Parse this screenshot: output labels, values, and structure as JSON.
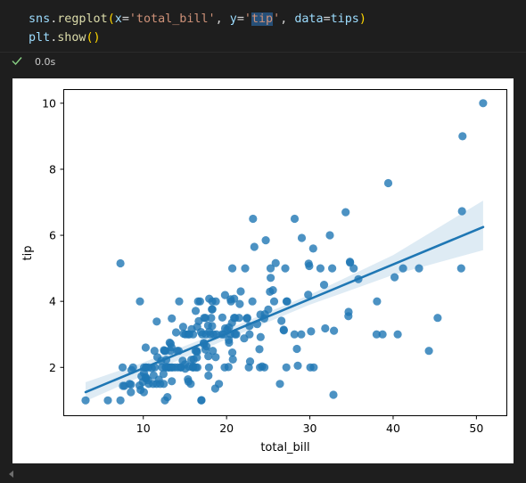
{
  "code": {
    "line1": {
      "module": "sns",
      "dot": ".",
      "func": "regplot",
      "open": "(",
      "kw_x": "x",
      "eq": "=",
      "x_value": "'total_bill'",
      "sep": ", ",
      "kw_y": "y",
      "y_quote_open": "'",
      "y_value": "tip",
      "y_quote_close": "'",
      "kw_data": "data",
      "data_value": "tips",
      "close": ")"
    },
    "line2": {
      "module": "plt",
      "dot": ".",
      "func": "show",
      "parens": "()"
    }
  },
  "execution": {
    "status_icon": "checkmark-icon",
    "status_color": "#89d185",
    "time": "0.0s"
  },
  "chart_data": {
    "type": "scatter",
    "title": "",
    "xlabel": "total_bill",
    "ylabel": "tip",
    "xlim": [
      0.5,
      53.6
    ],
    "ylim": [
      0.55,
      10.4
    ],
    "xticks": [
      10,
      20,
      30,
      40,
      50
    ],
    "yticks": [
      2,
      4,
      6,
      8,
      10
    ],
    "grid": false,
    "legend": "none",
    "point_color": "#1f77b4",
    "regression": {
      "line": [
        [
          3.07,
          1.25
        ],
        [
          50.81,
          6.25
        ]
      ],
      "ci_band": {
        "x": [
          3.07,
          10,
          20,
          30,
          40,
          50.81
        ],
        "lower": [
          0.98,
          1.75,
          2.85,
          3.9,
          4.8,
          5.55
        ],
        "upper": [
          1.55,
          2.15,
          3.15,
          4.2,
          5.4,
          7.05
        ]
      }
    },
    "points": [
      [
        3.07,
        1.0
      ],
      [
        5.75,
        1.0
      ],
      [
        7.25,
        1.0
      ],
      [
        7.25,
        5.15
      ],
      [
        7.51,
        2.0
      ],
      [
        7.56,
        1.44
      ],
      [
        7.74,
        1.44
      ],
      [
        8.35,
        1.5
      ],
      [
        8.51,
        1.25
      ],
      [
        8.52,
        1.48
      ],
      [
        8.58,
        1.92
      ],
      [
        8.77,
        2.0
      ],
      [
        9.55,
        1.45
      ],
      [
        9.6,
        4.0
      ],
      [
        9.68,
        1.32
      ],
      [
        9.78,
        1.73
      ],
      [
        9.94,
        1.56
      ],
      [
        10.07,
        1.25
      ],
      [
        10.07,
        1.83
      ],
      [
        10.09,
        2.0
      ],
      [
        10.27,
        1.71
      ],
      [
        10.29,
        2.6
      ],
      [
        10.33,
        1.67
      ],
      [
        10.33,
        2.0
      ],
      [
        10.34,
        1.66
      ],
      [
        10.34,
        2.0
      ],
      [
        10.59,
        1.61
      ],
      [
        10.63,
        2.0
      ],
      [
        10.65,
        1.5
      ],
      [
        11.02,
        1.98
      ],
      [
        11.17,
        1.5
      ],
      [
        11.24,
        1.76
      ],
      [
        11.35,
        2.5
      ],
      [
        11.38,
        2.0
      ],
      [
        11.59,
        1.5
      ],
      [
        11.61,
        3.39
      ],
      [
        11.69,
        2.31
      ],
      [
        11.87,
        1.63
      ],
      [
        12.03,
        1.5
      ],
      [
        12.16,
        2.2
      ],
      [
        12.26,
        2.0
      ],
      [
        12.43,
        1.8
      ],
      [
        12.46,
        1.5
      ],
      [
        12.48,
        2.52
      ],
      [
        12.54,
        2.5
      ],
      [
        12.6,
        1.0
      ],
      [
        12.66,
        2.5
      ],
      [
        12.69,
        2.0
      ],
      [
        12.74,
        2.01
      ],
      [
        12.76,
        2.23
      ],
      [
        12.9,
        1.1
      ],
      [
        13.0,
        2.0
      ],
      [
        13.03,
        2.0
      ],
      [
        13.13,
        2.0
      ],
      [
        13.16,
        2.75
      ],
      [
        13.27,
        2.5
      ],
      [
        13.28,
        2.72
      ],
      [
        13.37,
        2.0
      ],
      [
        13.39,
        2.61
      ],
      [
        13.42,
        3.48
      ],
      [
        13.42,
        1.58
      ],
      [
        13.51,
        2.0
      ],
      [
        13.81,
        2.0
      ],
      [
        13.94,
        3.06
      ],
      [
        14.07,
        2.5
      ],
      [
        14.15,
        2.0
      ],
      [
        14.26,
        2.5
      ],
      [
        14.31,
        4.0
      ],
      [
        14.48,
        2.0
      ],
      [
        14.52,
        2.0
      ],
      [
        14.73,
        2.2
      ],
      [
        14.78,
        3.23
      ],
      [
        14.83,
        3.02
      ],
      [
        15.01,
        2.09
      ],
      [
        15.04,
        1.96
      ],
      [
        15.06,
        3.0
      ],
      [
        15.36,
        1.64
      ],
      [
        15.38,
        3.0
      ],
      [
        15.42,
        1.57
      ],
      [
        15.48,
        2.02
      ],
      [
        15.53,
        3.0
      ],
      [
        15.69,
        1.5
      ],
      [
        15.77,
        2.23
      ],
      [
        15.81,
        3.16
      ],
      [
        15.95,
        2.0
      ],
      [
        15.98,
        2.03
      ],
      [
        15.98,
        3.0
      ],
      [
        16.0,
        2.0
      ],
      [
        16.04,
        2.24
      ],
      [
        16.27,
        2.5
      ],
      [
        16.29,
        3.71
      ],
      [
        16.31,
        2.0
      ],
      [
        16.4,
        2.5
      ],
      [
        16.43,
        2.3
      ],
      [
        16.45,
        2.47
      ],
      [
        16.47,
        3.23
      ],
      [
        16.49,
        2.0
      ],
      [
        16.58,
        4.0
      ],
      [
        16.66,
        3.4
      ],
      [
        16.82,
        4.0
      ],
      [
        16.93,
        3.07
      ],
      [
        16.97,
        1.0
      ],
      [
        16.99,
        1.01
      ],
      [
        17.07,
        3.0
      ],
      [
        17.26,
        2.74
      ],
      [
        17.29,
        2.71
      ],
      [
        17.31,
        3.5
      ],
      [
        17.46,
        2.54
      ],
      [
        17.47,
        3.5
      ],
      [
        17.51,
        3.0
      ],
      [
        17.59,
        2.64
      ],
      [
        17.78,
        3.27
      ],
      [
        17.81,
        2.34
      ],
      [
        17.82,
        1.75
      ],
      [
        17.89,
        2.0
      ],
      [
        17.92,
        4.08
      ],
      [
        17.92,
        3.08
      ],
      [
        18.04,
        3.0
      ],
      [
        18.15,
        3.5
      ],
      [
        18.24,
        3.76
      ],
      [
        18.26,
        3.25
      ],
      [
        18.28,
        4.0
      ],
      [
        18.29,
        3.76
      ],
      [
        18.35,
        2.5
      ],
      [
        18.43,
        3.0
      ],
      [
        18.64,
        1.36
      ],
      [
        18.69,
        2.31
      ],
      [
        18.71,
        4.0
      ],
      [
        18.78,
        3.0
      ],
      [
        19.08,
        1.5
      ],
      [
        19.44,
        3.0
      ],
      [
        19.49,
        3.51
      ],
      [
        19.65,
        3.0
      ],
      [
        19.77,
        2.0
      ],
      [
        19.81,
        4.19
      ],
      [
        19.82,
        3.18
      ],
      [
        20.08,
        3.15
      ],
      [
        20.23,
        2.01
      ],
      [
        20.27,
        2.83
      ],
      [
        20.29,
        2.75
      ],
      [
        20.29,
        3.21
      ],
      [
        20.45,
        3.0
      ],
      [
        20.49,
        4.06
      ],
      [
        20.53,
        4.0
      ],
      [
        20.65,
        3.35
      ],
      [
        20.69,
        2.45
      ],
      [
        20.69,
        5.0
      ],
      [
        20.76,
        2.24
      ],
      [
        20.9,
        3.5
      ],
      [
        20.92,
        4.08
      ],
      [
        21.01,
        3.5
      ],
      [
        21.01,
        3.0
      ],
      [
        21.16,
        3.0
      ],
      [
        21.5,
        3.5
      ],
      [
        21.58,
        3.92
      ],
      [
        21.7,
        4.3
      ],
      [
        22.12,
        2.88
      ],
      [
        22.23,
        5.0
      ],
      [
        22.42,
        3.48
      ],
      [
        22.49,
        3.5
      ],
      [
        22.67,
        2.0
      ],
      [
        22.75,
        3.25
      ],
      [
        22.76,
        3.0
      ],
      [
        22.82,
        2.18
      ],
      [
        23.1,
        4.0
      ],
      [
        23.17,
        6.5
      ],
      [
        23.33,
        5.65
      ],
      [
        23.68,
        3.31
      ],
      [
        23.95,
        2.55
      ],
      [
        24.01,
        2.0
      ],
      [
        24.06,
        3.6
      ],
      [
        24.08,
        2.92
      ],
      [
        24.27,
        2.03
      ],
      [
        24.52,
        3.48
      ],
      [
        24.55,
        2.0
      ],
      [
        24.59,
        3.61
      ],
      [
        24.71,
        5.85
      ],
      [
        25.0,
        3.75
      ],
      [
        25.21,
        4.29
      ],
      [
        25.28,
        5.0
      ],
      [
        25.29,
        4.71
      ],
      [
        25.56,
        4.34
      ],
      [
        25.71,
        4.0
      ],
      [
        25.89,
        5.16
      ],
      [
        26.41,
        1.5
      ],
      [
        26.59,
        3.41
      ],
      [
        26.86,
        3.14
      ],
      [
        26.88,
        3.12
      ],
      [
        27.05,
        5.0
      ],
      [
        27.18,
        2.0
      ],
      [
        27.2,
        4.0
      ],
      [
        27.28,
        4.0
      ],
      [
        28.15,
        3.0
      ],
      [
        28.17,
        6.5
      ],
      [
        28.44,
        2.56
      ],
      [
        28.55,
        2.05
      ],
      [
        28.97,
        3.0
      ],
      [
        29.03,
        5.92
      ],
      [
        29.8,
        4.2
      ],
      [
        29.85,
        5.14
      ],
      [
        29.93,
        5.07
      ],
      [
        30.06,
        2.0
      ],
      [
        30.14,
        3.09
      ],
      [
        30.4,
        5.6
      ],
      [
        30.46,
        2.0
      ],
      [
        31.27,
        5.0
      ],
      [
        31.71,
        4.5
      ],
      [
        31.85,
        3.18
      ],
      [
        32.4,
        6.0
      ],
      [
        32.68,
        5.0
      ],
      [
        32.83,
        1.17
      ],
      [
        32.9,
        3.11
      ],
      [
        34.3,
        6.7
      ],
      [
        34.63,
        3.55
      ],
      [
        34.65,
        3.68
      ],
      [
        34.81,
        5.2
      ],
      [
        34.83,
        5.17
      ],
      [
        35.26,
        5.0
      ],
      [
        35.83,
        4.67
      ],
      [
        38.01,
        3.0
      ],
      [
        38.07,
        4.0
      ],
      [
        38.73,
        3.0
      ],
      [
        39.42,
        7.58
      ],
      [
        40.17,
        4.73
      ],
      [
        40.55,
        3.0
      ],
      [
        41.19,
        5.0
      ],
      [
        43.11,
        5.0
      ],
      [
        44.3,
        2.5
      ],
      [
        45.35,
        3.5
      ],
      [
        48.17,
        5.0
      ],
      [
        48.27,
        6.73
      ],
      [
        48.33,
        9.0
      ],
      [
        50.81,
        10.0
      ]
    ]
  }
}
